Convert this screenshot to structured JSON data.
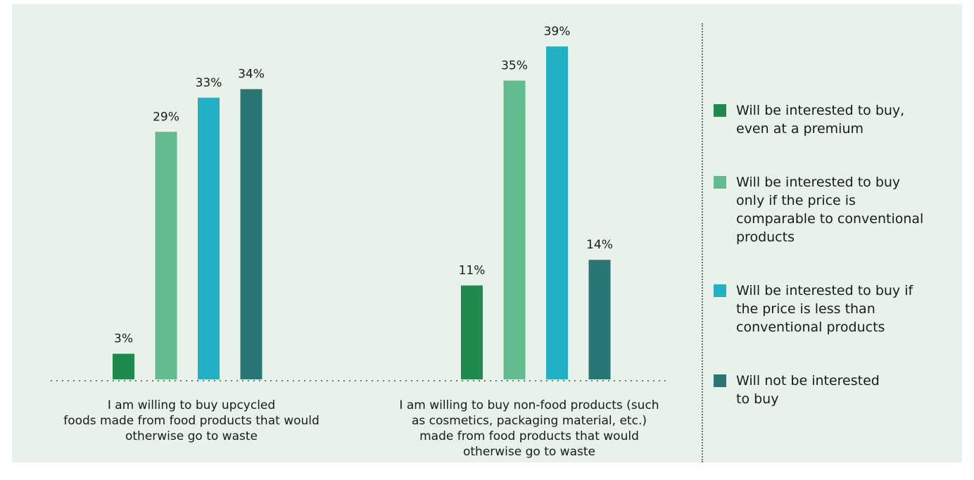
{
  "chart_data": {
    "type": "bar",
    "categories": [
      "I am willing to buy upcycled\nfoods made from food products that would\notherwise go to waste",
      "I am willing to buy non-food products (such\nas cosmetics, packaging material, etc.)\nmade from food products that would\notherwise go to waste"
    ],
    "series": [
      {
        "name": "Will be interested to buy,\neven at a premium",
        "values": [
          3,
          11
        ],
        "labels": [
          "3%",
          "11%"
        ],
        "color": "#1e8a4e"
      },
      {
        "name": "Will be interested to buy\nonly if the price is\ncomparable to conventional\nproducts",
        "values": [
          29,
          35
        ],
        "labels": [
          "29%",
          "35%"
        ],
        "color": "#62bb8e"
      },
      {
        "name": "Will be interested to buy if\nthe price is less than\nconventional products",
        "values": [
          33,
          39
        ],
        "labels": [
          "33%",
          "39%"
        ],
        "color": "#22b0c4"
      },
      {
        "name": "Will not be interested\nto buy",
        "values": [
          34,
          14
        ],
        "labels": [
          "34%",
          "14%"
        ],
        "color": "#297677"
      }
    ],
    "ylim": [
      0,
      39
    ],
    "legend_position": "right",
    "grid": false
  }
}
